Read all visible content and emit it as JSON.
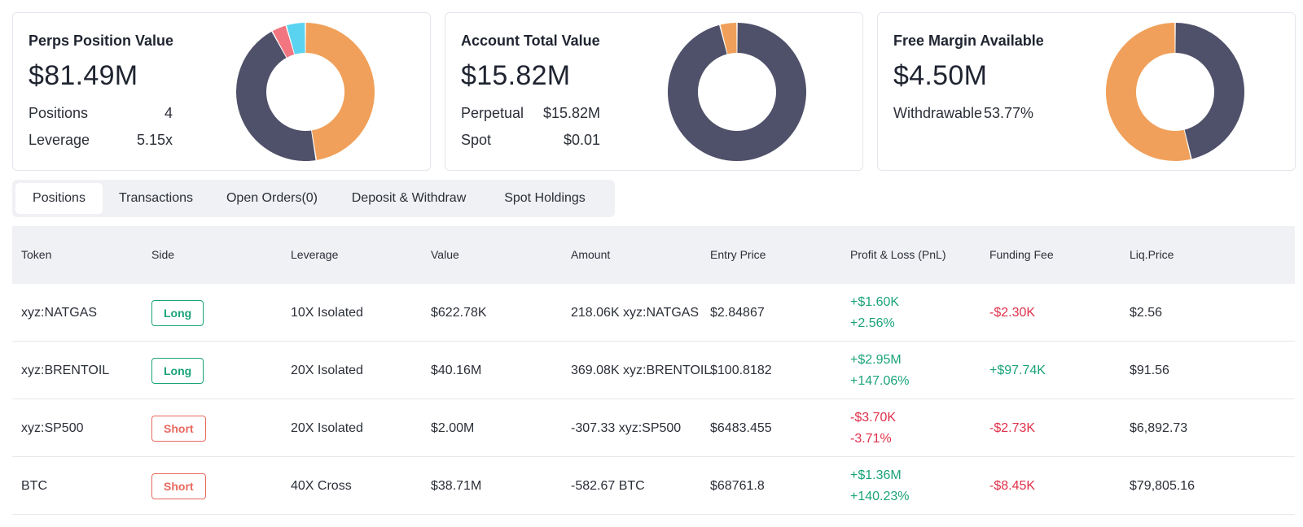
{
  "colors": {
    "dark": "#4f5069",
    "orange": "#f0a05a",
    "red": "#f27680",
    "cyan": "#5ad3f0",
    "green": "#1aa37a",
    "loss": "#e0304a"
  },
  "cards": {
    "perps": {
      "title": "Perps Position Value",
      "value": "$81.49M",
      "positions_label": "Positions",
      "positions_value": "4",
      "leverage_label": "Leverage",
      "leverage_value": "5.15x",
      "donut": [
        {
          "value": 0.475,
          "color": "#f0a05a"
        },
        {
          "value": 0.445,
          "color": "#4f5069"
        },
        {
          "value": 0.035,
          "color": "#f27680"
        },
        {
          "value": 0.045,
          "color": "#5ad3f0"
        }
      ]
    },
    "account": {
      "title": "Account Total Value",
      "value": "$15.82M",
      "perpetual_label": "Perpetual",
      "perpetual_value": "$15.82M",
      "spot_label": "Spot",
      "spot_value": "$0.01",
      "donut": [
        {
          "value": 0.96,
          "color": "#4f5069"
        },
        {
          "value": 0.04,
          "color": "#f0a05a"
        }
      ]
    },
    "margin": {
      "title": "Free Margin Available",
      "value": "$4.50M",
      "withdrawable_label": "Withdrawable",
      "withdrawable_value": "53.77%",
      "donut": [
        {
          "value": 0.4623,
          "color": "#4f5069"
        },
        {
          "value": 0.5377,
          "color": "#f0a05a"
        }
      ]
    }
  },
  "tabs": [
    "Positions",
    "Transactions",
    "Open Orders(0)",
    "Deposit & Withdraw",
    "Spot Holdings"
  ],
  "table": {
    "headers": [
      "Token",
      "Side",
      "Leverage",
      "Value",
      "Amount",
      "Entry Price",
      "Profit & Loss (PnL)",
      "Funding Fee",
      "Liq.Price"
    ],
    "rows": [
      {
        "token": "xyz:NATGAS",
        "side": "Long",
        "leverage": "10X Isolated",
        "value": "$622.78K",
        "amount": "218.06K xyz:NATGAS",
        "entry": "$2.84867",
        "pnl": "+$1.60K",
        "pnl_pct": "+2.56%",
        "funding": "-$2.30K",
        "liq": "$2.56"
      },
      {
        "token": "xyz:BRENTOIL",
        "side": "Long",
        "leverage": "20X Isolated",
        "value": "$40.16M",
        "amount": "369.08K xyz:BRENTOIL",
        "entry": "$100.8182",
        "pnl": "+$2.95M",
        "pnl_pct": "+147.06%",
        "funding": "+$97.74K",
        "liq": "$91.56"
      },
      {
        "token": "xyz:SP500",
        "side": "Short",
        "leverage": "20X Isolated",
        "value": "$2.00M",
        "amount": "-307.33 xyz:SP500",
        "entry": "$6483.455",
        "pnl": "-$3.70K",
        "pnl_pct": "-3.71%",
        "funding": "-$2.73K",
        "liq": "$6,892.73"
      },
      {
        "token": "BTC",
        "side": "Short",
        "leverage": "40X Cross",
        "value": "$38.71M",
        "amount": "-582.67 BTC",
        "entry": "$68761.8",
        "pnl": "+$1.36M",
        "pnl_pct": "+140.23%",
        "funding": "-$8.45K",
        "liq": "$79,805.16"
      }
    ]
  }
}
